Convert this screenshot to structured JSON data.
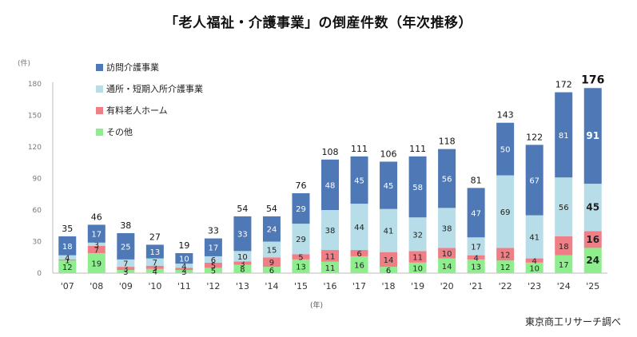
{
  "chart_data": {
    "type": "bar",
    "stacked": true,
    "title": "「老人福祉・介護事業」の倒産件数（年次推移）",
    "ylabel": "(件)",
    "xlabel": "(年)",
    "source": "東京商工リサーチ調べ",
    "ylim": [
      0,
      180
    ],
    "yticks": [
      0,
      30,
      60,
      90,
      120,
      150,
      180
    ],
    "categories": [
      "'07",
      "'08",
      "'09",
      "'10",
      "'11",
      "'12",
      "'13",
      "'14",
      "'15",
      "'16",
      "'17",
      "'18",
      "'19",
      "'20",
      "'21",
      "'22",
      "'23",
      "'24",
      "'25"
    ],
    "series": [
      {
        "name": "その他",
        "color": "#8eee8e",
        "values": [
          12,
          19,
          3,
          4,
          3,
          5,
          8,
          6,
          13,
          11,
          16,
          6,
          10,
          14,
          13,
          12,
          10,
          17,
          24
        ]
      },
      {
        "name": "有料老人ホーム",
        "color": "#ef7f86",
        "values": [
          1,
          7,
          3,
          3,
          2,
          5,
          3,
          9,
          5,
          11,
          6,
          14,
          11,
          10,
          4,
          12,
          4,
          18,
          16
        ]
      },
      {
        "name": "通所・短期入所介護事業",
        "color": "#b7dde8",
        "values": [
          4,
          3,
          7,
          7,
          4,
          6,
          10,
          15,
          29,
          38,
          44,
          41,
          32,
          38,
          17,
          69,
          41,
          56,
          45
        ]
      },
      {
        "name": "訪問介護事業",
        "color": "#4f79b6",
        "values": [
          18,
          17,
          25,
          13,
          10,
          17,
          33,
          24,
          29,
          48,
          45,
          45,
          58,
          56,
          47,
          50,
          67,
          81,
          91
        ]
      }
    ],
    "totals": [
      35,
      46,
      38,
      27,
      19,
      33,
      54,
      54,
      76,
      108,
      111,
      106,
      111,
      118,
      81,
      143,
      122,
      172,
      176
    ],
    "legend_order": [
      "訪問介護事業",
      "通所・短期入所介護事業",
      "有料老人ホーム",
      "その他"
    ],
    "legend_position": "top-left",
    "grid": false
  }
}
